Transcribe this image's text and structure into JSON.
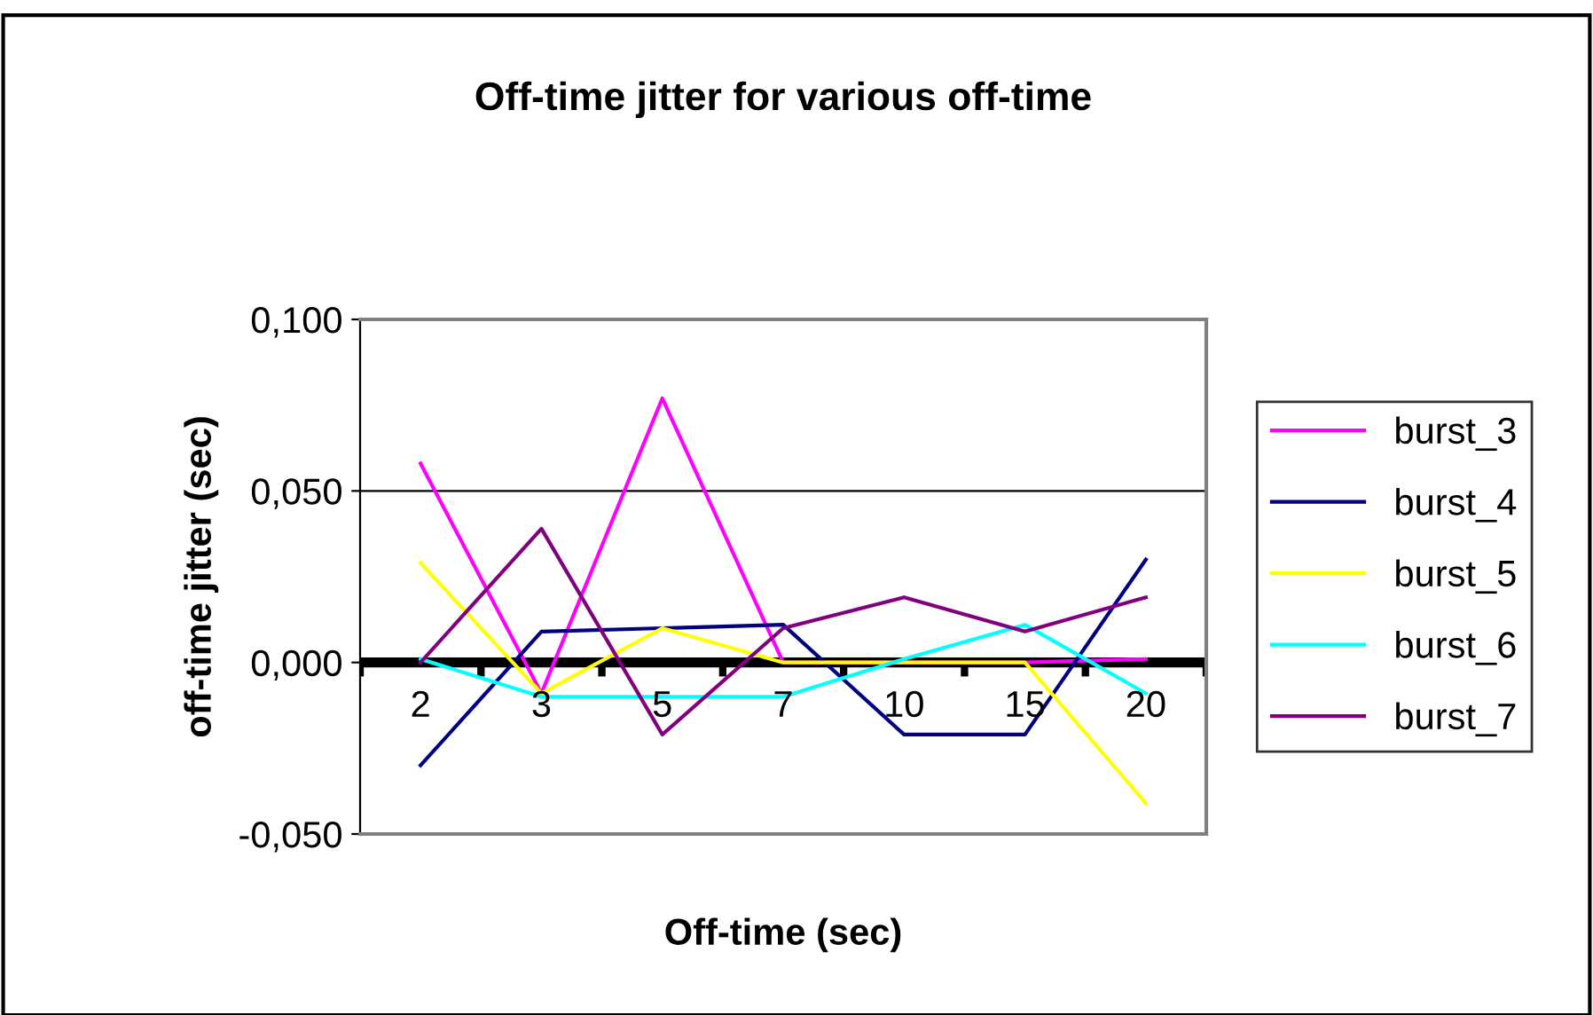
{
  "chart_data": {
    "type": "line",
    "title": "Off-time jitter for various off-time",
    "xlabel": "Off-time (sec)",
    "ylabel": "off-time jitter (sec)",
    "categories": [
      "2",
      "3",
      "5",
      "7",
      "10",
      "15",
      "20"
    ],
    "series": [
      {
        "name": "burst_3",
        "color": "#ff00ff",
        "values": [
          0.058,
          -0.009,
          0.077,
          0.0,
          0.0,
          0.0,
          0.001
        ]
      },
      {
        "name": "burst_4",
        "color": "#000080",
        "values": [
          -0.03,
          0.009,
          0.01,
          0.011,
          -0.021,
          -0.021,
          0.03
        ]
      },
      {
        "name": "burst_5",
        "color": "#ffff00",
        "values": [
          0.029,
          -0.009,
          0.01,
          0.0,
          0.0,
          0.0,
          -0.041
        ]
      },
      {
        "name": "burst_6",
        "color": "#00ffff",
        "values": [
          0.001,
          -0.01,
          -0.01,
          -0.01,
          0.001,
          0.011,
          -0.009
        ]
      },
      {
        "name": "burst_7",
        "color": "#800080",
        "values": [
          0.0,
          0.039,
          -0.021,
          0.01,
          0.019,
          0.009,
          0.019
        ]
      }
    ],
    "ylim": [
      -0.05,
      0.1
    ],
    "yticks": [
      {
        "value": -0.05,
        "label": "-0,050"
      },
      {
        "value": 0,
        "label": "0,000"
      },
      {
        "value": 0.05,
        "label": "0,050"
      },
      {
        "value": 0.1,
        "label": "0,100"
      }
    ],
    "grid": "y",
    "legend": "right",
    "marker": "none",
    "line_style": "solid"
  }
}
